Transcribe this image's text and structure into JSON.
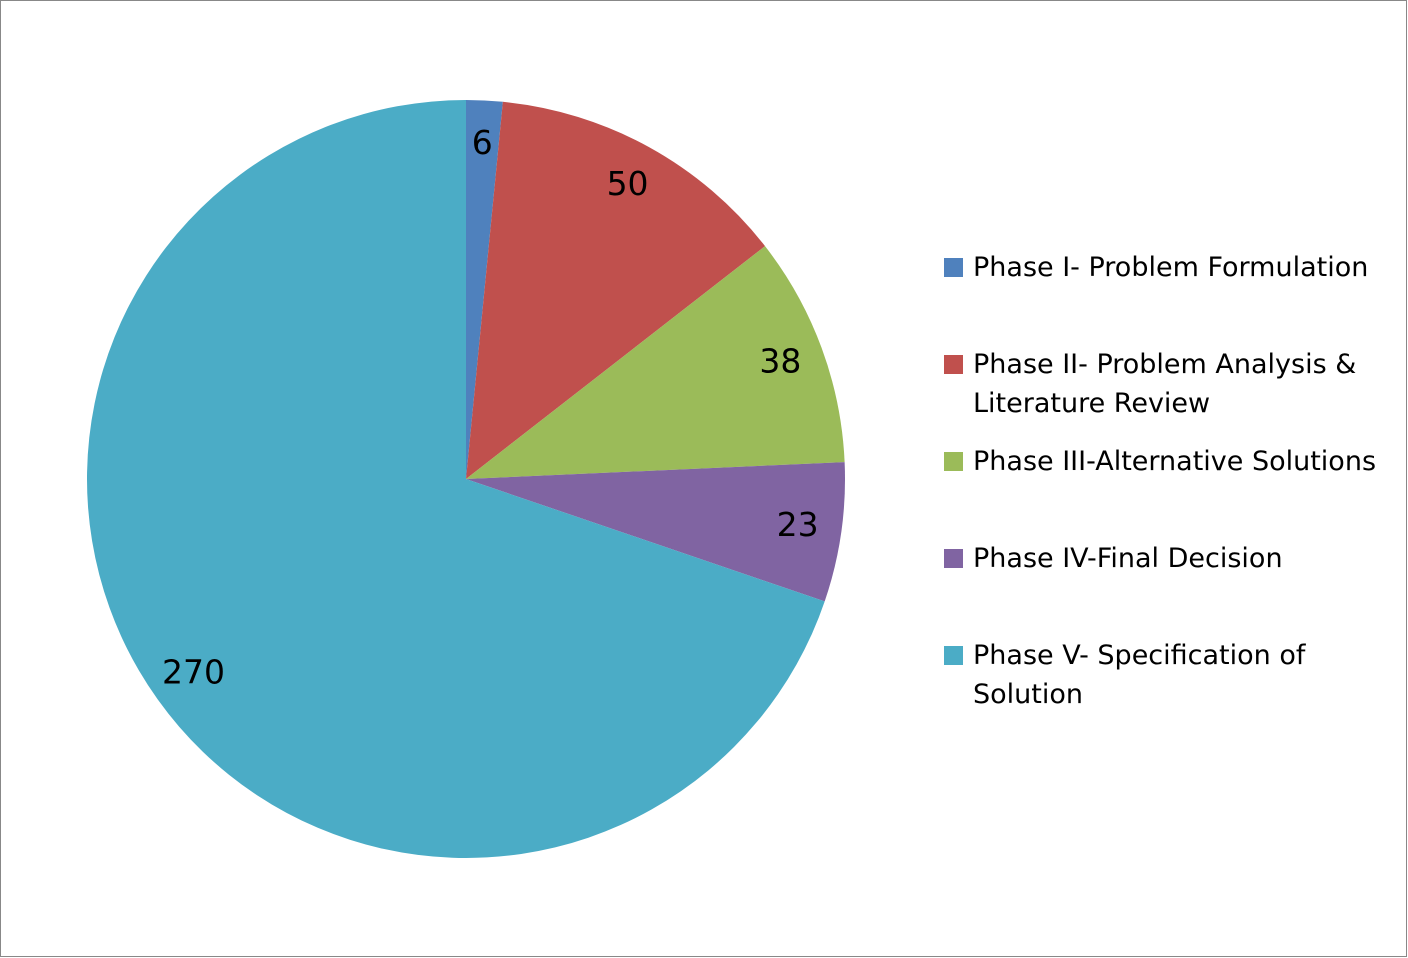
{
  "chart_data": {
    "type": "pie",
    "categories": [
      "Phase I- Problem Formulation",
      "Phase II- Problem Analysis & Literature Review",
      "Phase III-Alternative Solutions",
      "Phase IV-Final Decision",
      "Phase V- Specification of Solution"
    ],
    "values": [
      6,
      50,
      38,
      23,
      270
    ],
    "colors": [
      "#4f81bd",
      "#c0504d",
      "#9bbb59",
      "#8064a2",
      "#4bacc6"
    ],
    "legend": "right"
  }
}
